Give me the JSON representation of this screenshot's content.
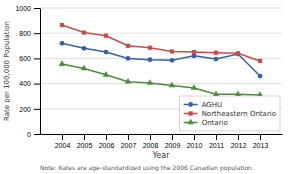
{
  "chart_data": {
    "type": "line",
    "x": [
      2004,
      2005,
      2006,
      2007,
      2008,
      2009,
      2010,
      2011,
      2012,
      2013
    ],
    "xlabel": "Year",
    "ylabel": "Rate per 100,000 Population",
    "annotations": [
      "Note: Rates are age-standardized using the 2006 Canadian population."
    ],
    "series": [
      {
        "name": "AGHU",
        "color": "#3a5fa0",
        "marker": "circle",
        "values": [
          720,
          680,
          650,
          600,
          590,
          585,
          620,
          595,
          635,
          460
        ]
      },
      {
        "name": "Northeastern Ontario",
        "color": "#c0504d",
        "marker": "square",
        "values": [
          865,
          805,
          780,
          700,
          685,
          655,
          650,
          645,
          640,
          580
        ]
      },
      {
        "name": "Ontario",
        "color": "#4e8b3f",
        "marker": "triangle",
        "values": [
          555,
          520,
          470,
          415,
          405,
          385,
          365,
          315,
          315,
          310
        ]
      }
    ],
    "xlim": [
      2003,
      2014
    ],
    "xticks": [
      2004,
      2005,
      2006,
      2007,
      2008,
      2009,
      2010,
      2011,
      2012,
      2013
    ],
    "ylim": [
      0,
      1000
    ],
    "yticks": [
      0,
      200,
      400,
      600,
      800,
      1000
    ],
    "grid": true,
    "legend": "lower right"
  }
}
